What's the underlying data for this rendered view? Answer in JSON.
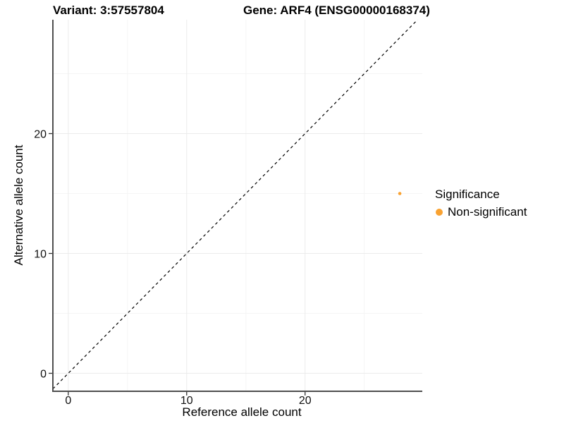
{
  "titles": {
    "variant": "Variant: 3:57557804",
    "gene": "Gene: ARF4 (ENSG00000168374)"
  },
  "axes": {
    "x_label": "Reference allele count",
    "y_label": "Alternative allele count"
  },
  "legend": {
    "title": "Significance",
    "position": "right",
    "items": [
      {
        "label": "Non-significant",
        "color": "#F9A231"
      }
    ]
  },
  "chart_data": {
    "type": "scatter",
    "title": "Variant: 3:57557804 — Gene: ARF4 (ENSG00000168374)",
    "xlabel": "Reference allele count",
    "ylabel": "Alternative allele count",
    "xlim": [
      -1.3,
      29.9
    ],
    "ylim": [
      -1.5,
      29.5
    ],
    "x_ticks": [
      0,
      10,
      20
    ],
    "y_ticks": [
      0,
      10,
      20
    ],
    "x_minor": [
      5,
      15,
      25
    ],
    "y_minor": [
      5,
      15,
      25
    ],
    "grid": true,
    "legend_position": "right",
    "series": [
      {
        "name": "Non-significant",
        "color": "#F9A231",
        "points": [
          {
            "x": 28,
            "y": 15
          }
        ]
      }
    ],
    "reference_line": {
      "slope": 1,
      "intercept": 0,
      "style": "dashed",
      "color": "#000000"
    },
    "colors": {
      "grid_major": "#ebebeb",
      "grid_minor": "#f5f5f5",
      "axis_line": "#4f4f4f",
      "tick": "#333333",
      "tick_label": "#111111"
    }
  }
}
